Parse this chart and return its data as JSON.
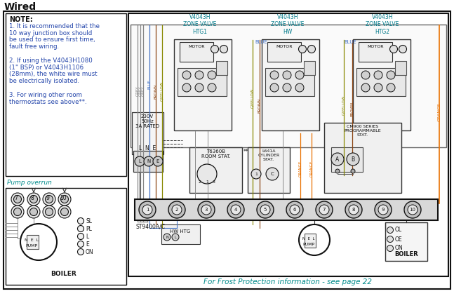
{
  "title": "Wired",
  "bg_color": "#ffffff",
  "note_text_lines": [
    "NOTE:",
    "1. It is recommended that the",
    "10 way junction box should",
    "be used to ensure first time,",
    "fault free wiring.",
    " ",
    "2. If using the V4043H1080",
    "(1\" BSP) or V4043H1106",
    "(28mm), the white wire must",
    "be electrically isolated.",
    " ",
    "3. For wiring other room",
    "thermostats see above**."
  ],
  "pump_overrun_label": "Pump overrun",
  "zone_labels": [
    "V4043H\nZONE VALVE\nHTG1",
    "V4043H\nZONE VALVE\nHW",
    "V4043H\nZONE VALVE\nHTG2"
  ],
  "frost_text": "For Frost Protection information - see page 22",
  "wc": {
    "grey": "#888888",
    "blue": "#4472c4",
    "brown": "#8B4513",
    "orange": "#E87000",
    "gyellow": "#888800",
    "black": "#111111",
    "cyan": "#007A8A",
    "teal": "#008B8B",
    "lgrey": "#aaaaaa"
  },
  "power_label": "230V\n50Hz\n3A RATED",
  "lne_label": "L  N  E",
  "room_stat_label": "T6360B\nROOM STAT.",
  "cyl_stat_label": "L641A\nCYLINDER\nSTAT.",
  "cm900_label": "CM900 SERIES\nPROGRAMMABLE\nSTAT.",
  "st9400_label": "ST9400A/C",
  "hw_htg_label": "HW HTG",
  "boiler_label": "BOILER",
  "motor_label": "MOTOR"
}
